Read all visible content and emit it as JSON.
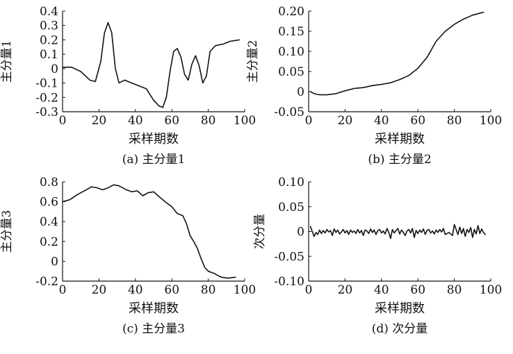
{
  "chart_data": [
    {
      "type": "line",
      "caption": "(a) 主分量1",
      "xlabel": "采样期数",
      "ylabel": "主分量1",
      "xlim": [
        0,
        100
      ],
      "ylim": [
        -0.3,
        0.4
      ],
      "xticks": [
        0,
        20,
        40,
        60,
        80,
        100
      ],
      "xtick_labels": [
        "0",
        "20",
        "40",
        "60",
        "80",
        "100"
      ],
      "yticks": [
        -0.3,
        -0.2,
        -0.1,
        0,
        0.1,
        0.2,
        0.3,
        0.4
      ],
      "ytick_labels": [
        "-0.3",
        "-0.2",
        "-0.1",
        "0",
        "0.1",
        "0.2",
        "0.3",
        "0.4"
      ],
      "series": [
        {
          "x": [
            0,
            5,
            10,
            15,
            18,
            21,
            23,
            25,
            27,
            29,
            31,
            34,
            38,
            42,
            46,
            50,
            53,
            55,
            57,
            59,
            61,
            63,
            65,
            67,
            69,
            71,
            73,
            75,
            77,
            79,
            81,
            84,
            88,
            92,
            97
          ],
          "y": [
            0.01,
            0.01,
            -0.02,
            -0.08,
            -0.09,
            0.05,
            0.25,
            0.32,
            0.25,
            0.0,
            -0.1,
            -0.08,
            -0.1,
            -0.12,
            -0.14,
            -0.22,
            -0.26,
            -0.27,
            -0.2,
            -0.02,
            0.12,
            0.14,
            0.08,
            -0.04,
            -0.08,
            0.03,
            0.09,
            0.02,
            -0.1,
            -0.05,
            0.12,
            0.16,
            0.17,
            0.19,
            0.2
          ]
        }
      ]
    },
    {
      "type": "line",
      "caption": "(b) 主分量2",
      "xlabel": "采样期数",
      "ylabel": "主分量2",
      "xlim": [
        0,
        100
      ],
      "ylim": [
        -0.05,
        0.2
      ],
      "xticks": [
        0,
        20,
        40,
        60,
        80,
        100
      ],
      "xtick_labels": [
        "0",
        "20",
        "40",
        "60",
        "80",
        "100"
      ],
      "yticks": [
        -0.05,
        0,
        0.05,
        0.1,
        0.15,
        0.2
      ],
      "ytick_labels": [
        "-0.05",
        "0",
        "0.05",
        "0.10",
        "0.15",
        "0.20"
      ],
      "series": [
        {
          "x": [
            1,
            3,
            6,
            10,
            15,
            20,
            25,
            30,
            35,
            40,
            45,
            50,
            55,
            60,
            65,
            70,
            75,
            80,
            85,
            90,
            96
          ],
          "y": [
            0.0,
            -0.005,
            -0.008,
            -0.008,
            -0.005,
            0.002,
            0.008,
            0.01,
            0.015,
            0.018,
            0.022,
            0.03,
            0.04,
            0.058,
            0.085,
            0.125,
            0.15,
            0.167,
            0.18,
            0.19,
            0.197
          ]
        }
      ]
    },
    {
      "type": "line",
      "caption": "(c) 主分量3",
      "xlabel": "采样期数",
      "ylabel": "主分量3",
      "xlim": [
        0,
        100
      ],
      "ylim": [
        -0.2,
        0.8
      ],
      "xticks": [
        0,
        20,
        40,
        60,
        80,
        100
      ],
      "xtick_labels": [
        "0",
        "20",
        "40",
        "60",
        "80",
        "100"
      ],
      "yticks": [
        -0.2,
        0,
        0.2,
        0.4,
        0.6,
        0.8
      ],
      "ytick_labels": [
        "-0.2",
        "0",
        "0.2",
        "0.4",
        "0.6",
        "0.8"
      ],
      "series": [
        {
          "x": [
            0,
            4,
            8,
            12,
            16,
            19,
            22,
            25,
            28,
            31,
            35,
            38,
            41,
            44,
            47,
            50,
            53,
            57,
            60,
            63,
            66,
            68,
            70,
            72,
            74,
            76,
            78,
            80,
            83,
            87,
            91,
            95
          ],
          "y": [
            0.6,
            0.62,
            0.67,
            0.71,
            0.75,
            0.74,
            0.72,
            0.74,
            0.77,
            0.76,
            0.72,
            0.7,
            0.71,
            0.66,
            0.69,
            0.7,
            0.65,
            0.59,
            0.55,
            0.48,
            0.46,
            0.38,
            0.26,
            0.2,
            0.13,
            0.03,
            -0.06,
            -0.1,
            -0.12,
            -0.16,
            -0.17,
            -0.16
          ]
        }
      ]
    },
    {
      "type": "line",
      "caption": "(d) 次分量",
      "xlabel": "采样期数",
      "ylabel": "次分量",
      "xlim": [
        0,
        100
      ],
      "ylim": [
        -0.1,
        0.1
      ],
      "xticks": [
        0,
        20,
        40,
        60,
        80,
        100
      ],
      "xtick_labels": [
        "0",
        "20",
        "40",
        "60",
        "80",
        "100"
      ],
      "yticks": [
        -0.1,
        -0.05,
        0,
        0.05,
        0.1
      ],
      "ytick_labels": [
        "-0.10",
        "-0.05",
        "0",
        "0.05",
        "0.10"
      ],
      "series": [
        {
          "x": [
            1,
            2,
            3,
            4,
            5,
            6,
            7,
            8,
            9,
            10,
            11,
            12,
            13,
            14,
            15,
            16,
            17,
            18,
            19,
            20,
            21,
            22,
            23,
            24,
            25,
            26,
            27,
            28,
            29,
            30,
            31,
            32,
            33,
            34,
            35,
            36,
            37,
            38,
            39,
            40,
            41,
            42,
            43,
            44,
            45,
            46,
            47,
            48,
            49,
            50,
            51,
            52,
            53,
            54,
            55,
            56,
            57,
            58,
            59,
            60,
            61,
            62,
            63,
            64,
            65,
            66,
            67,
            68,
            69,
            70,
            71,
            72,
            73,
            74,
            75,
            76,
            77,
            78,
            79,
            80,
            81,
            82,
            83,
            84,
            85,
            86,
            87,
            88,
            89,
            90,
            91,
            92,
            93,
            94,
            95,
            96,
            97
          ],
          "y": [
            0.01,
            0.0,
            -0.01,
            -0.002,
            -0.006,
            0.003,
            -0.004,
            0.002,
            -0.003,
            0.004,
            -0.001,
            0.002,
            -0.008,
            0.005,
            -0.002,
            0.003,
            -0.005,
            -0.001,
            0.004,
            -0.003,
            0.002,
            -0.006,
            0.003,
            -0.002,
            0.001,
            -0.004,
            0.004,
            -0.003,
            0.002,
            -0.008,
            0.003,
            0.001,
            -0.004,
            0.005,
            -0.002,
            0.003,
            -0.006,
            0.002,
            0.004,
            -0.003,
            0.001,
            -0.005,
            0.006,
            -0.002,
            -0.014,
            0.004,
            -0.003,
            0.002,
            0.006,
            -0.005,
            0.003,
            -0.002,
            -0.008,
            0.001,
            0.004,
            -0.003,
            0.006,
            -0.012,
            0.002,
            -0.004,
            0.003,
            -0.002,
            0.005,
            -0.006,
            0.002,
            0.004,
            -0.003,
            0.001,
            -0.005,
            0.003,
            -0.002,
            0.004,
            -0.001,
            0.006,
            -0.006,
            -0.004,
            -0.002,
            -0.005,
            -0.008,
            0.014,
            0.004,
            -0.006,
            0.009,
            -0.004,
            0.006,
            -0.01,
            0.004,
            -0.002,
            0.008,
            -0.012,
            0.004,
            -0.005,
            0.012,
            -0.004,
            0.005,
            -0.002,
            -0.006
          ]
        }
      ]
    }
  ]
}
